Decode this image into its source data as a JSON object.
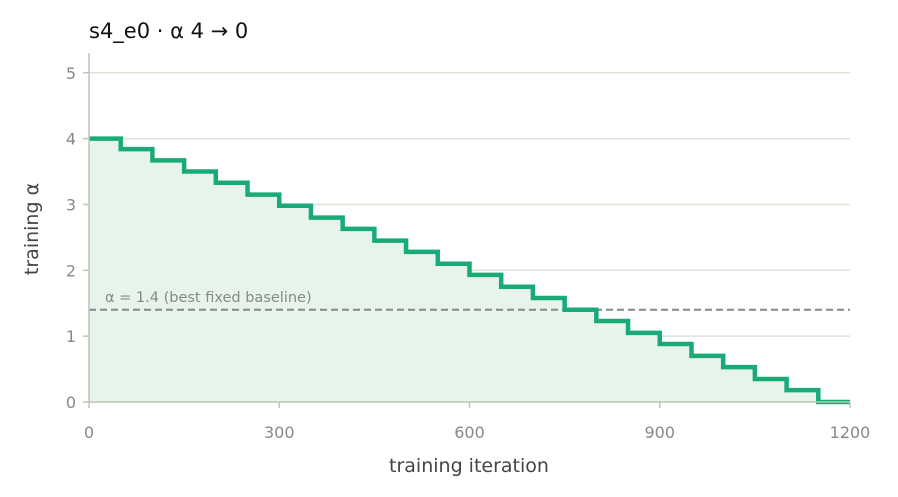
{
  "chart_data": {
    "type": "line",
    "title": "s4_e0   ·   α 4 → 0",
    "xlabel": "training iteration",
    "ylabel": "training α",
    "xlim": [
      0,
      1200
    ],
    "ylim": [
      0,
      5.3
    ],
    "xticks": [
      0,
      300,
      600,
      900,
      1200
    ],
    "yticks": [
      0,
      1,
      2,
      3,
      4,
      5
    ],
    "grid": "horizontal",
    "series": [
      {
        "step": "post",
        "color": "#1aaa78",
        "fill": "#e6f4ec",
        "x": [
          0,
          50,
          100,
          150,
          200,
          250,
          300,
          350,
          400,
          450,
          500,
          550,
          600,
          650,
          700,
          750,
          800,
          850,
          900,
          950,
          1000,
          1050,
          1100,
          1150,
          1200
        ],
        "y": [
          4.0,
          3.84,
          3.67,
          3.5,
          3.33,
          3.15,
          2.98,
          2.8,
          2.63,
          2.45,
          2.28,
          2.1,
          1.93,
          1.75,
          1.58,
          1.4,
          1.23,
          1.05,
          0.88,
          0.7,
          0.53,
          0.35,
          0.18,
          0.0,
          0.0
        ]
      }
    ],
    "reference_line": {
      "y": 1.4,
      "label": "α = 1.4 (best fixed baseline)",
      "color": "#888888"
    }
  }
}
